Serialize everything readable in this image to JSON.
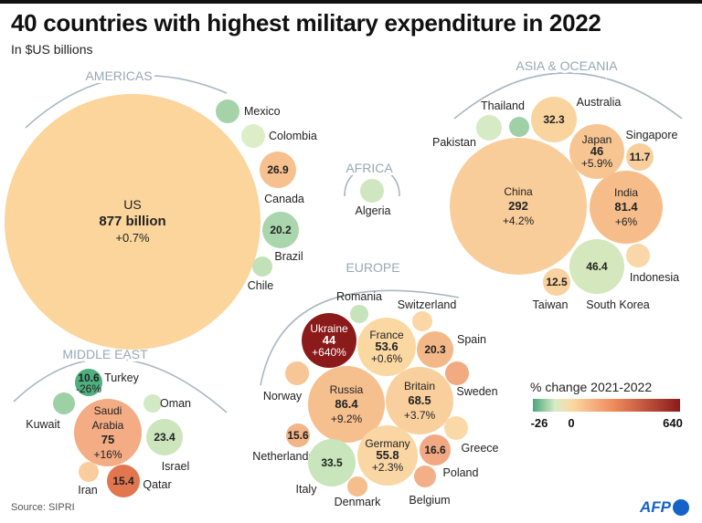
{
  "header": {
    "title": "40 countries with highest military expenditure in 2022",
    "subtitle": "In $US billions"
  },
  "footer": {
    "source": "Source: SIPRI",
    "logo_text": "AFP"
  },
  "chart_data": {
    "type": "bubble",
    "title": "40 countries with highest military expenditure in 2022",
    "unit": "In $US billions",
    "regions": [
      "AMERICAS",
      "AFRICA",
      "ASIA & OCEANIA",
      "EUROPE",
      "MIDDLE EAST"
    ],
    "legend": {
      "title": "% change 2021-2022",
      "min_label": "-26",
      "zero_label": "0",
      "max_label": "640",
      "colors": [
        "#4aa77a",
        "#d8ebc6",
        "#fbd9a3",
        "#ef8a5d",
        "#8b1a1a"
      ]
    },
    "countries": [
      {
        "name": "US",
        "region": "AMERICAS",
        "value": "877 billion",
        "change": "+0.7%",
        "color": "#fbd59c"
      },
      {
        "name": "Mexico",
        "region": "AMERICAS",
        "value": null,
        "change": null,
        "color": "#a4d3a8"
      },
      {
        "name": "Colombia",
        "region": "AMERICAS",
        "value": null,
        "change": null,
        "color": "#dcedc8"
      },
      {
        "name": "Canada",
        "region": "AMERICAS",
        "value": "26.9",
        "change": null,
        "color": "#f6c08f"
      },
      {
        "name": "Brazil",
        "region": "AMERICAS",
        "value": "20.2",
        "change": null,
        "color": "#a9d6ac"
      },
      {
        "name": "Chile",
        "region": "AMERICAS",
        "value": null,
        "change": null,
        "color": "#c2e1b8"
      },
      {
        "name": "Algeria",
        "region": "AFRICA",
        "value": null,
        "change": null,
        "color": "#cfe6c0"
      },
      {
        "name": "China",
        "region": "ASIA & OCEANIA",
        "value": "292",
        "change": "+4.2%",
        "color": "#f8cd9a"
      },
      {
        "name": "India",
        "region": "ASIA & OCEANIA",
        "value": "81.4",
        "change": "+6%",
        "color": "#f6bd8a"
      },
      {
        "name": "Japan",
        "region": "ASIA & OCEANIA",
        "value": "46",
        "change": "+5.9%",
        "color": "#f7c592"
      },
      {
        "name": "Australia",
        "region": "ASIA & OCEANIA",
        "value": "32.3",
        "change": null,
        "color": "#f9d49f"
      },
      {
        "name": "Singapore",
        "region": "ASIA & OCEANIA",
        "value": "11.7",
        "change": null,
        "color": "#f8cf9c"
      },
      {
        "name": "Indonesia",
        "region": "ASIA & OCEANIA",
        "value": null,
        "change": null,
        "color": "#fad7a8"
      },
      {
        "name": "Taiwan",
        "region": "ASIA & OCEANIA",
        "value": "12.5",
        "change": null,
        "color": "#f9d29f"
      },
      {
        "name": "South Korea",
        "region": "ASIA & OCEANIA",
        "value": "46.4",
        "change": null,
        "color": "#d4e7bd"
      },
      {
        "name": "Pakistan",
        "region": "ASIA & OCEANIA",
        "value": null,
        "change": null,
        "color": "#d6eac5"
      },
      {
        "name": "Thailand",
        "region": "ASIA & OCEANIA",
        "value": null,
        "change": null,
        "color": "#9fd0a7"
      },
      {
        "name": "Ukraine",
        "region": "EUROPE",
        "value": "44",
        "change": "+640%",
        "color": "#8b1a1a"
      },
      {
        "name": "France",
        "region": "EUROPE",
        "value": "53.6",
        "change": "+0.6%",
        "color": "#fbd8a2"
      },
      {
        "name": "Russia",
        "region": "EUROPE",
        "value": "86.4",
        "change": "+9.2%",
        "color": "#f6bf8e"
      },
      {
        "name": "Britain",
        "region": "EUROPE",
        "value": "68.5",
        "change": "+3.7%",
        "color": "#f9cf9d"
      },
      {
        "name": "Germany",
        "region": "EUROPE",
        "value": "55.8",
        "change": "+2.3%",
        "color": "#fad6a4"
      },
      {
        "name": "Spain",
        "region": "EUROPE",
        "value": "20.3",
        "change": null,
        "color": "#f4b788"
      },
      {
        "name": "Sweden",
        "region": "EUROPE",
        "value": null,
        "change": null,
        "color": "#f2aa80"
      },
      {
        "name": "Norway",
        "region": "EUROPE",
        "value": null,
        "change": null,
        "color": "#f8c596"
      },
      {
        "name": "Netherlands",
        "region": "EUROPE",
        "value": "15.6",
        "change": null,
        "color": "#f3b487"
      },
      {
        "name": "Greece",
        "region": "EUROPE",
        "value": null,
        "change": null,
        "color": "#fbd9a6"
      },
      {
        "name": "Poland",
        "region": "EUROPE",
        "value": "16.6",
        "change": null,
        "color": "#f2a983"
      },
      {
        "name": "Italy",
        "region": "EUROPE",
        "value": "33.5",
        "change": null,
        "color": "#c8e5bb"
      },
      {
        "name": "Denmark",
        "region": "EUROPE",
        "value": null,
        "change": null,
        "color": "#f6bd8d"
      },
      {
        "name": "Belgium",
        "region": "EUROPE",
        "value": null,
        "change": null,
        "color": "#f3b088"
      },
      {
        "name": "Romania",
        "region": "EUROPE",
        "value": null,
        "change": null,
        "color": "#c6e4bb"
      },
      {
        "name": "Switzerland",
        "region": "EUROPE",
        "value": null,
        "change": null,
        "color": "#fad7a4"
      },
      {
        "name": "Saudi Arabia",
        "region": "MIDDLE EAST",
        "value": "75",
        "change": "+16%",
        "color": "#f3ac84"
      },
      {
        "name": "Turkey",
        "region": "MIDDLE EAST",
        "value": "10.6",
        "change": "-26%",
        "color": "#4faf7f"
      },
      {
        "name": "Kuwait",
        "region": "MIDDLE EAST",
        "value": null,
        "change": null,
        "color": "#9dd0a5"
      },
      {
        "name": "Oman",
        "region": "MIDDLE EAST",
        "value": null,
        "change": null,
        "color": "#d2e9c6"
      },
      {
        "name": "Israel",
        "region": "MIDDLE EAST",
        "value": "23.4",
        "change": null,
        "color": "#cce5bd"
      },
      {
        "name": "Iran",
        "region": "MIDDLE EAST",
        "value": null,
        "change": null,
        "color": "#f9cd9e"
      },
      {
        "name": "Qatar",
        "region": "MIDDLE EAST",
        "value": "15.4",
        "change": null,
        "color": "#e2764f"
      }
    ]
  }
}
